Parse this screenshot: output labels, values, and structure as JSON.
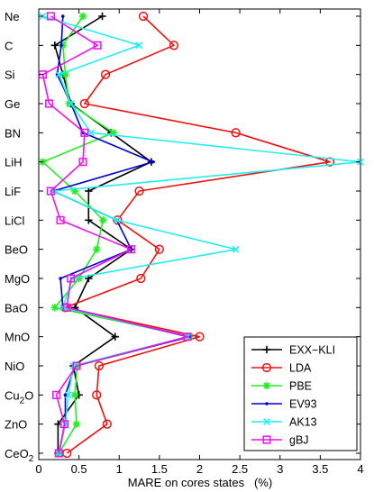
{
  "chart_data": {
    "type": "line",
    "orientation": "horizontal",
    "xlabel": "MARE on cores states   (%)",
    "xlim": [
      0,
      4
    ],
    "x_ticks": [
      "0",
      "0.5",
      "1",
      "1.5",
      "2",
      "2.5",
      "3",
      "3.5",
      "4"
    ],
    "x_tick_values": [
      0,
      0.5,
      1,
      1.5,
      2,
      2.5,
      3,
      3.5,
      4
    ],
    "categories": [
      {
        "base": "Ne",
        "sub": "",
        "tail": ""
      },
      {
        "base": "C",
        "sub": "",
        "tail": ""
      },
      {
        "base": "Si",
        "sub": "",
        "tail": ""
      },
      {
        "base": "Ge",
        "sub": "",
        "tail": ""
      },
      {
        "base": "BN",
        "sub": "",
        "tail": ""
      },
      {
        "base": "LiH",
        "sub": "",
        "tail": ""
      },
      {
        "base": "LiF",
        "sub": "",
        "tail": ""
      },
      {
        "base": "LiCl",
        "sub": "",
        "tail": ""
      },
      {
        "base": "BeO",
        "sub": "",
        "tail": ""
      },
      {
        "base": "MgO",
        "sub": "",
        "tail": ""
      },
      {
        "base": "BaO",
        "sub": "",
        "tail": ""
      },
      {
        "base": "MnO",
        "sub": "",
        "tail": ""
      },
      {
        "base": "NiO",
        "sub": "",
        "tail": ""
      },
      {
        "base": "Cu",
        "sub": "2",
        "tail": "O"
      },
      {
        "base": "ZnO",
        "sub": "",
        "tail": ""
      },
      {
        "base": "CeO",
        "sub": "2",
        "tail": ""
      }
    ],
    "legend_position": "bottom-right",
    "series": [
      {
        "name": "EXX−KLI",
        "color": "#000000",
        "marker": "plus",
        "values": [
          0.79,
          0.2,
          0.3,
          0.4,
          0.9,
          1.4,
          0.62,
          0.62,
          1.15,
          0.62,
          0.45,
          0.95,
          0.43,
          0.5,
          0.24,
          0.24
        ]
      },
      {
        "name": "LDA",
        "color": "#ee1111",
        "marker": "circle",
        "values": [
          1.3,
          1.68,
          0.83,
          0.57,
          2.45,
          3.62,
          1.25,
          0.98,
          1.5,
          1.27,
          0.33,
          2.0,
          0.75,
          0.72,
          0.85,
          0.35
        ]
      },
      {
        "name": "PBE",
        "color": "#22ee22",
        "marker": "asterisk",
        "values": [
          0.55,
          0.3,
          0.33,
          0.38,
          0.93,
          0.05,
          0.45,
          0.8,
          0.72,
          0.5,
          0.2,
          1.88,
          0.48,
          0.45,
          0.47,
          0.25
        ]
      },
      {
        "name": "EV93",
        "color": "#0000cc",
        "marker": "dot",
        "values": [
          0.3,
          0.28,
          0.23,
          0.4,
          0.55,
          1.42,
          0.18,
          0.97,
          1.15,
          0.27,
          0.3,
          1.88,
          0.45,
          0.33,
          0.33,
          0.25
        ]
      },
      {
        "name": "AK13",
        "color": "#22eeee",
        "marker": "x",
        "values": [
          0.05,
          1.25,
          0.25,
          0.4,
          0.65,
          4.0,
          0.18,
          0.97,
          2.45,
          0.42,
          0.3,
          1.85,
          0.43,
          0.37,
          0.33,
          0.25
        ]
      },
      {
        "name": "gBJ",
        "color": "#ee11ee",
        "marker": "square",
        "values": [
          0.15,
          0.73,
          0.05,
          0.13,
          0.57,
          0.55,
          0.15,
          0.27,
          1.15,
          0.4,
          0.35,
          1.85,
          0.47,
          0.22,
          0.32,
          0.25
        ]
      }
    ]
  }
}
